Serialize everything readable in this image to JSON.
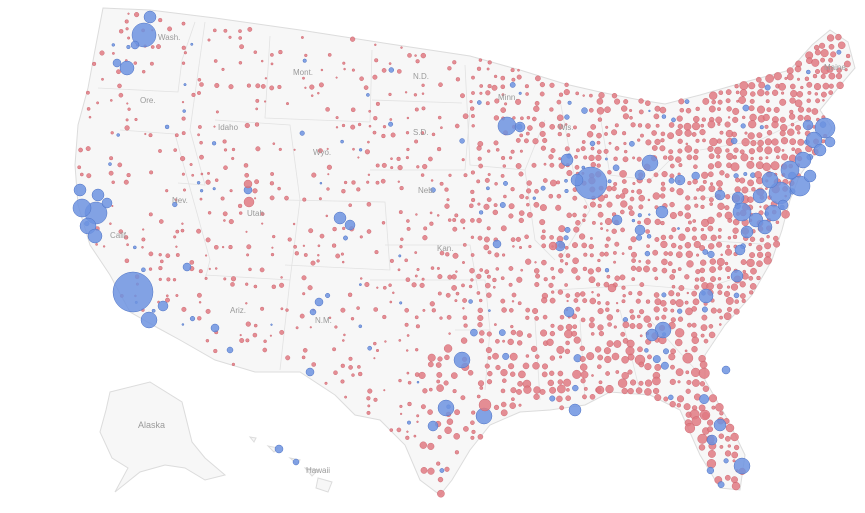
{
  "state_labels": {
    "wash": "Wash.",
    "ore": "Ore.",
    "idaho": "Idaho",
    "mont": "Mont.",
    "nd": "N.D.",
    "sd": "S.D.",
    "wyo": "Wyo.",
    "nev": "Nev.",
    "calif": "Calif.",
    "utah": "Utah",
    "ariz": "Ariz.",
    "nm": "N.M.",
    "neb": "Neb.",
    "kan": "Kan.",
    "minn": "Minn.",
    "wis": "Wis.",
    "maine": "Maine",
    "alaska": "Alaska",
    "hawaii": "Hawaii"
  },
  "colors": {
    "republican": "#e07a83",
    "democrat": "#6d93e0",
    "land": "#f7f7f7",
    "border": "#dcdcdc"
  }
}
